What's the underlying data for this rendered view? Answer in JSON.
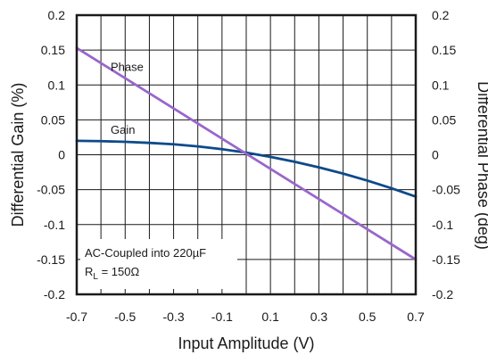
{
  "chart_data": {
    "type": "line",
    "xlabel": "Input Amplitude (V)",
    "ylabel_left": "Differential Gain (%)",
    "ylabel_right": "Differential Phase (deg)",
    "xlim": [
      -0.7,
      0.7
    ],
    "ylim_left": [
      -0.2,
      0.2
    ],
    "ylim_right": [
      -0.2,
      0.2
    ],
    "x_ticks": [
      "-0.7",
      "-0.5",
      "-0.3",
      "-0.1",
      "0.1",
      "0.3",
      "0.5",
      "0.7"
    ],
    "y_ticks_left": [
      "0.2",
      "0.15",
      "0.1",
      "0.05",
      "0",
      "-0.05",
      "-0.1",
      "-0.15",
      "-0.2"
    ],
    "y_ticks_right": [
      "0.2",
      "0.15",
      "0.1",
      "0.05",
      "0",
      "-0.05",
      "-0.1",
      "-0.15",
      "-0.2"
    ],
    "grid": true,
    "series": [
      {
        "name": "Gain",
        "axis": "left",
        "color": "#0d4a8a",
        "x": [
          -0.7,
          -0.6,
          -0.5,
          -0.4,
          -0.3,
          -0.2,
          -0.1,
          0.0,
          0.1,
          0.2,
          0.3,
          0.4,
          0.5,
          0.6,
          0.7
        ],
        "y": [
          0.02,
          0.0195,
          0.0185,
          0.017,
          0.015,
          0.012,
          0.008,
          0.003,
          -0.003,
          -0.01,
          -0.018,
          -0.027,
          -0.037,
          -0.048,
          -0.06
        ]
      },
      {
        "name": "Phase",
        "axis": "right",
        "color": "#9966cc",
        "x": [
          -0.7,
          0.7
        ],
        "y": [
          0.153,
          -0.15
        ]
      }
    ],
    "annotations": [
      {
        "text": "Phase",
        "x": -0.56,
        "y": 0.12
      },
      {
        "text": "Gain",
        "x": -0.56,
        "y": 0.03
      }
    ]
  },
  "conditions": {
    "line1": "AC-Coupled into 220µF",
    "line2_main": "R",
    "line2_sub": "L",
    "line2_rest": " = 150Ω"
  }
}
